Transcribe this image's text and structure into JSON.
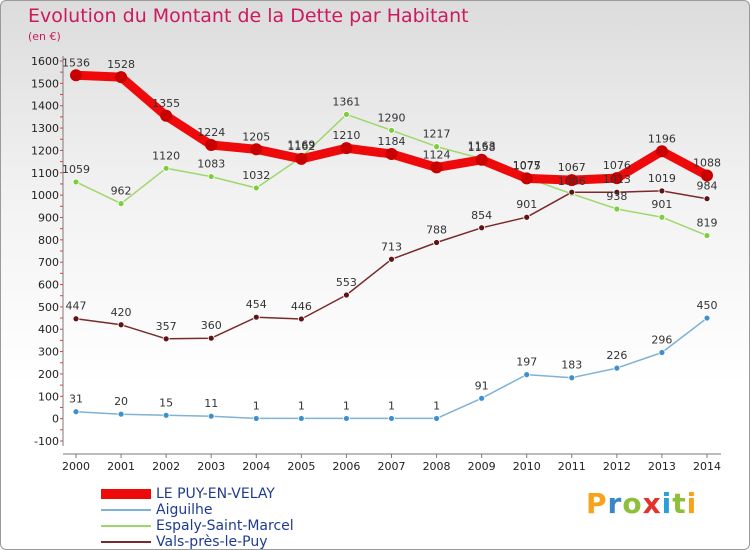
{
  "header": {
    "title": "Evolution du Montant de la Dette par Habitant",
    "subtitle": "(en €)"
  },
  "brand": {
    "text": "Proxiti",
    "letter_colors": [
      "#f7a21b",
      "#3a87c8",
      "#8dbf3b",
      "#e0332c",
      "#2a9fd8",
      "#8dbf3b",
      "#f7a21b"
    ]
  },
  "chart_data": {
    "type": "line",
    "x": [
      "2000",
      "2001",
      "2002",
      "2003",
      "2004",
      "2005",
      "2006",
      "2007",
      "2008",
      "2009",
      "2010",
      "2011",
      "2012",
      "2013",
      "2014"
    ],
    "ylim": [
      -100,
      1600
    ],
    "yticks": [
      "-100",
      "0",
      "100",
      "200",
      "300",
      "400",
      "500",
      "600",
      "700",
      "800",
      "900",
      "1000",
      "1100",
      "1200",
      "1300",
      "1400",
      "1500",
      "1600"
    ],
    "grid": false,
    "legend_position": "bottom-left",
    "series": [
      {
        "name": "LE PUY-EN-VELAY",
        "color": "#ee0a0a",
        "marker_color": "#c80000",
        "thick": true,
        "values": [
          1536,
          1528,
          1355,
          1224,
          1205,
          1162,
          1210,
          1184,
          1124,
          1158,
          1075,
          1067,
          1076,
          1196,
          1088
        ],
        "labels": [
          "1536",
          "1528",
          "1355",
          "1224",
          "1205",
          "1162",
          "1210",
          "1184",
          "1124",
          "1158",
          "1075",
          "1067",
          "1076",
          "1196",
          "1088"
        ]
      },
      {
        "name": "Aiguilhe",
        "color": "#7fb2d6",
        "marker_color": "#3f8fcf",
        "thick": false,
        "values": [
          31,
          20,
          15,
          11,
          1,
          1,
          1,
          1,
          1,
          91,
          197,
          183,
          226,
          296,
          450
        ],
        "labels": [
          "31",
          "20",
          "15",
          "11",
          "1",
          "1",
          "1",
          "1",
          "1",
          "91",
          "197",
          "183",
          "226",
          "296",
          "450"
        ]
      },
      {
        "name": "Espaly-Saint-Marcel",
        "color": "#9ed86a",
        "marker_color": "#7ccf3a",
        "thick": false,
        "values": [
          1059,
          962,
          1120,
          1083,
          1032,
          1169,
          1361,
          1290,
          1217,
          1163,
          1077,
          1006,
          938,
          901,
          819
        ],
        "labels": [
          "1059",
          "962",
          "1120",
          "1083",
          "1032",
          "1169",
          "1361",
          "1290",
          "1217",
          "1163",
          "1077",
          "1006",
          "938",
          "901",
          "819"
        ]
      },
      {
        "name": "Vals-près-le-Puy",
        "color": "#7a2a2a",
        "marker_color": "#5e1414",
        "thick": false,
        "values": [
          447,
          420,
          357,
          360,
          454,
          446,
          553,
          713,
          788,
          854,
          901,
          1013,
          1013,
          1019,
          984
        ],
        "labels": [
          "447",
          "420",
          "357",
          "360",
          "454",
          "446",
          "553",
          "713",
          "788",
          "854",
          "901",
          "",
          "1013",
          "1019",
          "984"
        ]
      }
    ]
  }
}
